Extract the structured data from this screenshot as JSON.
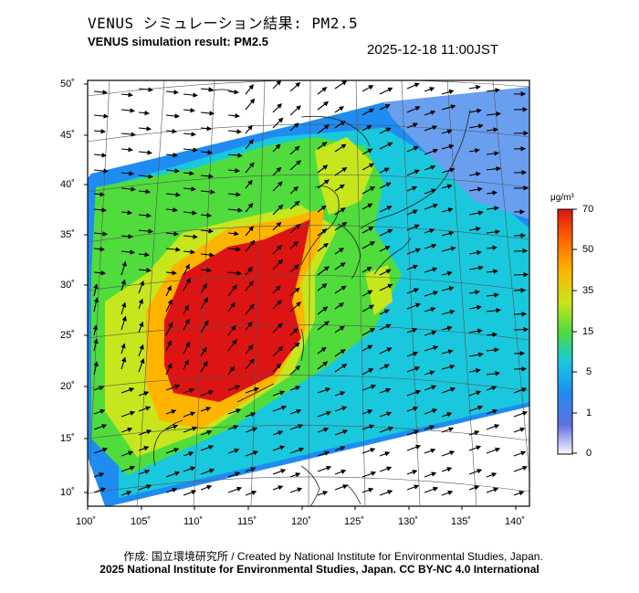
{
  "header": {
    "title_ja": "VENUS シミュレーション結果: PM2.5",
    "title_en": "VENUS simulation result: PM2.5",
    "timestamp": "2025-12-18 11:00JST"
  },
  "map": {
    "lon_range": [
      100,
      141
    ],
    "lat_range": [
      9,
      51
    ],
    "lat_labels": [
      "50˚",
      "45˚",
      "40˚",
      "35˚",
      "30˚",
      "25˚",
      "20˚",
      "15˚",
      "10˚"
    ],
    "lon_labels": [
      "100˚",
      "105˚",
      "110˚",
      "115˚",
      "120˚",
      "125˚",
      "130˚",
      "135˚",
      "140˚"
    ]
  },
  "colorbar": {
    "unit": "μg/m³",
    "ticks": [
      "70",
      "50",
      "35",
      "15",
      "5",
      "1",
      "0"
    ],
    "colors": [
      "#f8f8ff",
      "#1e3cc8",
      "#1e8cf0",
      "#19c8dc",
      "#50dc3c",
      "#c8e61e",
      "#ffb400",
      "#ff6400",
      "#dc1414"
    ]
  },
  "credits": {
    "ja": "作成: 国立環境研究所 / Created by National Institute for Environmental Studies, Japan.",
    "license": "2025 National Institute for Environmental Studies, Japan. CC BY-NC 4.0 International"
  }
}
